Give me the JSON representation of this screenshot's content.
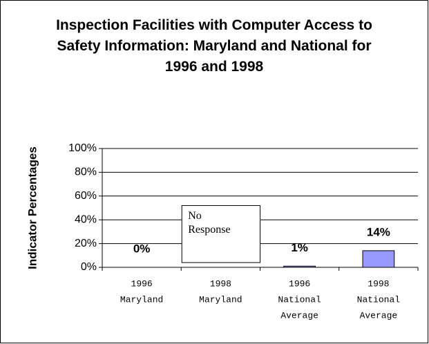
{
  "chart_data": {
    "type": "bar",
    "title": "Inspection Facilities with Computer Access to Safety Information: Maryland and National for 1996 and 1998",
    "y_label": "Indicator Percentages",
    "categories": [
      [
        "1996",
        "Maryland"
      ],
      [
        "1998",
        "Maryland"
      ],
      [
        "1996",
        "National",
        "Average"
      ],
      [
        "1998",
        "National",
        "Average"
      ]
    ],
    "values": [
      0,
      null,
      1,
      14
    ],
    "value_labels": [
      "0%",
      null,
      "1%",
      "14%"
    ],
    "color": "#9999ff",
    "annotation": "No Response",
    "ylim": [
      0,
      100
    ],
    "yticks": [
      {
        "value": 0,
        "label": "0%"
      },
      {
        "value": 20,
        "label": "20%"
      },
      {
        "value": 40,
        "label": "40%"
      },
      {
        "value": 60,
        "label": "60%"
      },
      {
        "value": 80,
        "label": "80%"
      },
      {
        "value": 100,
        "label": "100%"
      }
    ],
    "grid": true
  }
}
